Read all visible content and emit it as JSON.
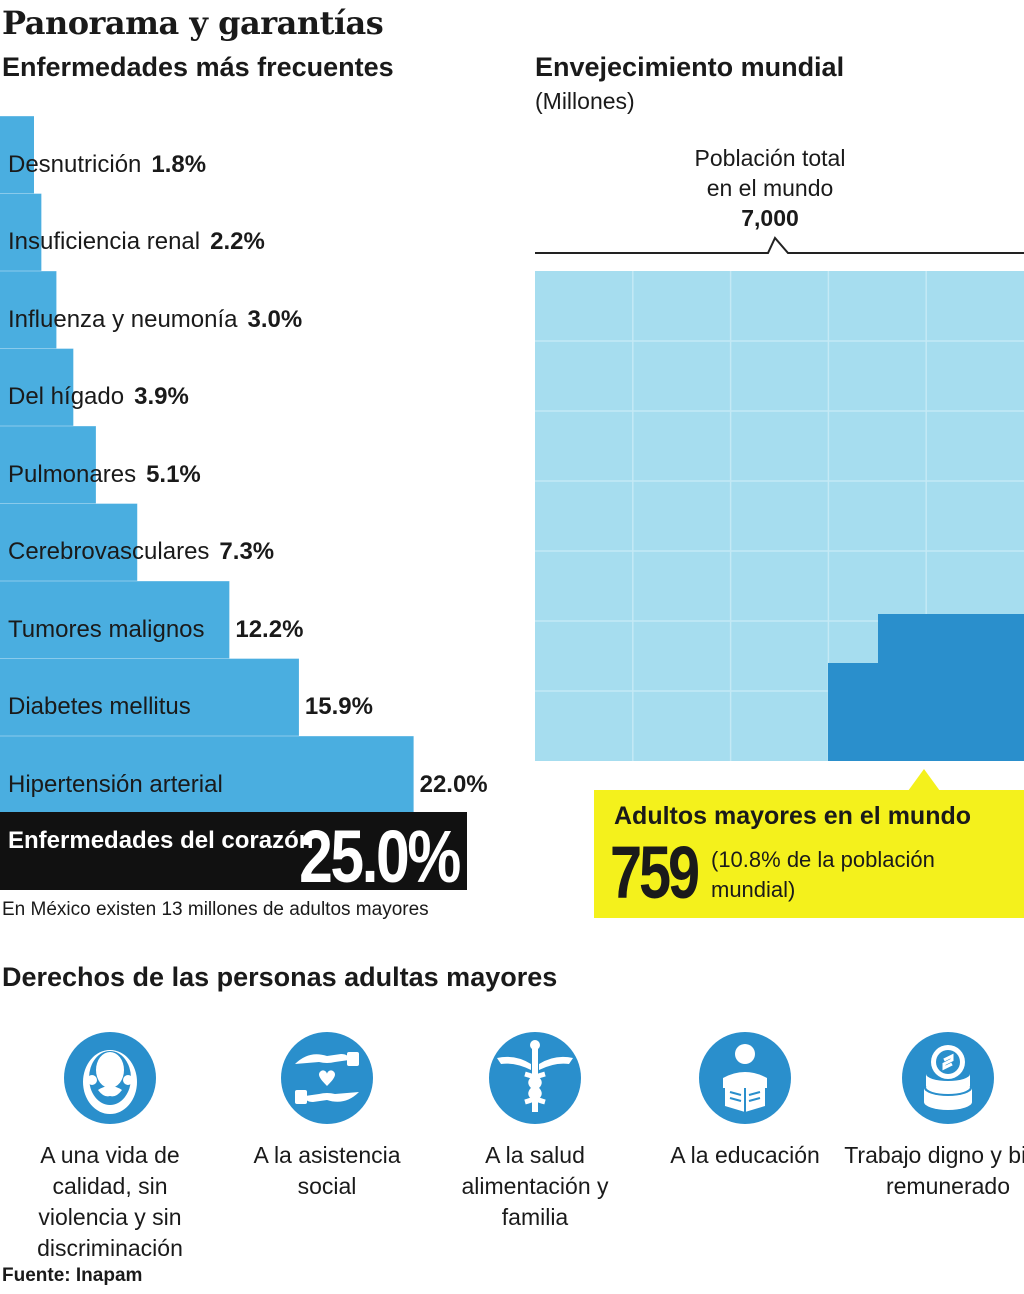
{
  "title": "Panorama y garantías",
  "left_subtitle": "Enfermedades más frecuentes",
  "right_subtitle": "Envejecimiento mundial",
  "right_unit": "(Millones)",
  "chart_data": [
    {
      "type": "bar",
      "orientation": "horizontal",
      "title": "Enfermedades más frecuentes",
      "categories": [
        "Desnutrición",
        "Insuficiencia renal",
        "Influenza y neumonía",
        "Del hígado",
        "Pulmonares",
        "Cerebrovasculares",
        "Tumores malignos",
        "Diabetes mellitus",
        "Hipertensión arterial"
      ],
      "values": [
        1.8,
        2.2,
        3.0,
        3.9,
        5.1,
        7.3,
        12.2,
        15.9,
        22.0
      ],
      "labels": [
        "1.8%",
        "2.2%",
        "3.0%",
        "3.9%",
        "5.1%",
        "7.3%",
        "12.2%",
        "15.9%",
        "22.0%"
      ],
      "highlight": {
        "name": "Enfermedades del corazón",
        "value": 25.0,
        "label": "25.0%"
      },
      "color": "#4aaee0",
      "highlight_color": "#111111"
    },
    {
      "type": "area",
      "title": "Envejecimiento mundial",
      "unit": "(Millones)",
      "total": {
        "label": "Población total en el mundo",
        "value": 7000,
        "value_label": "7,000"
      },
      "part": {
        "label": "Adultos mayores en el mundo",
        "value": 759,
        "value_label": "759",
        "share": "(10.8% de la población mundial)"
      },
      "colors": {
        "total": "#a6ddef",
        "part": "#2a8fcc"
      }
    }
  ],
  "heart": {
    "name": "Enfermedades del corazón",
    "value": "25.0%"
  },
  "note": "En México existen 13 millones de adultos mayores",
  "population": {
    "label_line1": "Población total",
    "label_line2": "en el mundo",
    "value": "7,000"
  },
  "seniors": {
    "title": "Adultos mayores en el mundo",
    "value": "759",
    "note": "(10.8% de la población mundial)"
  },
  "rights": {
    "title": "Derechos de las personas adultas mayores",
    "items": [
      {
        "icon": "elder-face-icon",
        "text": "A una vida de calidad, sin violencia y sin discriminación"
      },
      {
        "icon": "heart-hands-icon",
        "text": "A la asistencia social"
      },
      {
        "icon": "caduceus-icon",
        "text": "A la salud alimentación y familia"
      },
      {
        "icon": "reader-icon",
        "text": "A la educación"
      },
      {
        "icon": "coins-icon",
        "text": "Trabajo digno y bien remunerado"
      }
    ]
  },
  "source": "Fuente: Inapam"
}
